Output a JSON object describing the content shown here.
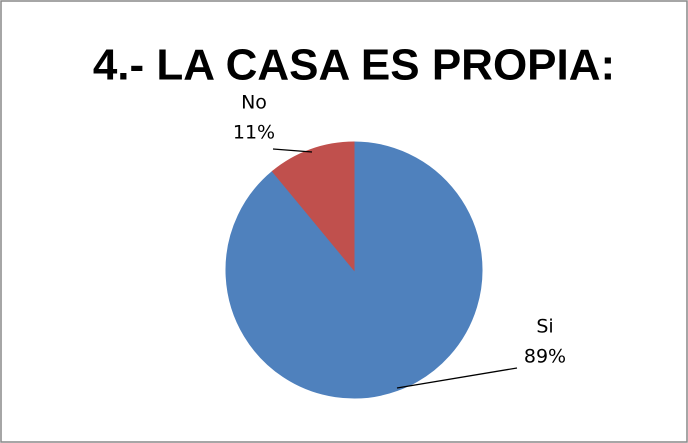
{
  "chart_data": {
    "type": "pie",
    "title": "4.- LA CASA ES PROPIA:",
    "categories": [
      "Si",
      "No"
    ],
    "values": [
      89,
      11
    ],
    "value_labels": [
      "89%",
      "11%"
    ],
    "colors": [
      "#4f81bd",
      "#c0504d"
    ]
  }
}
